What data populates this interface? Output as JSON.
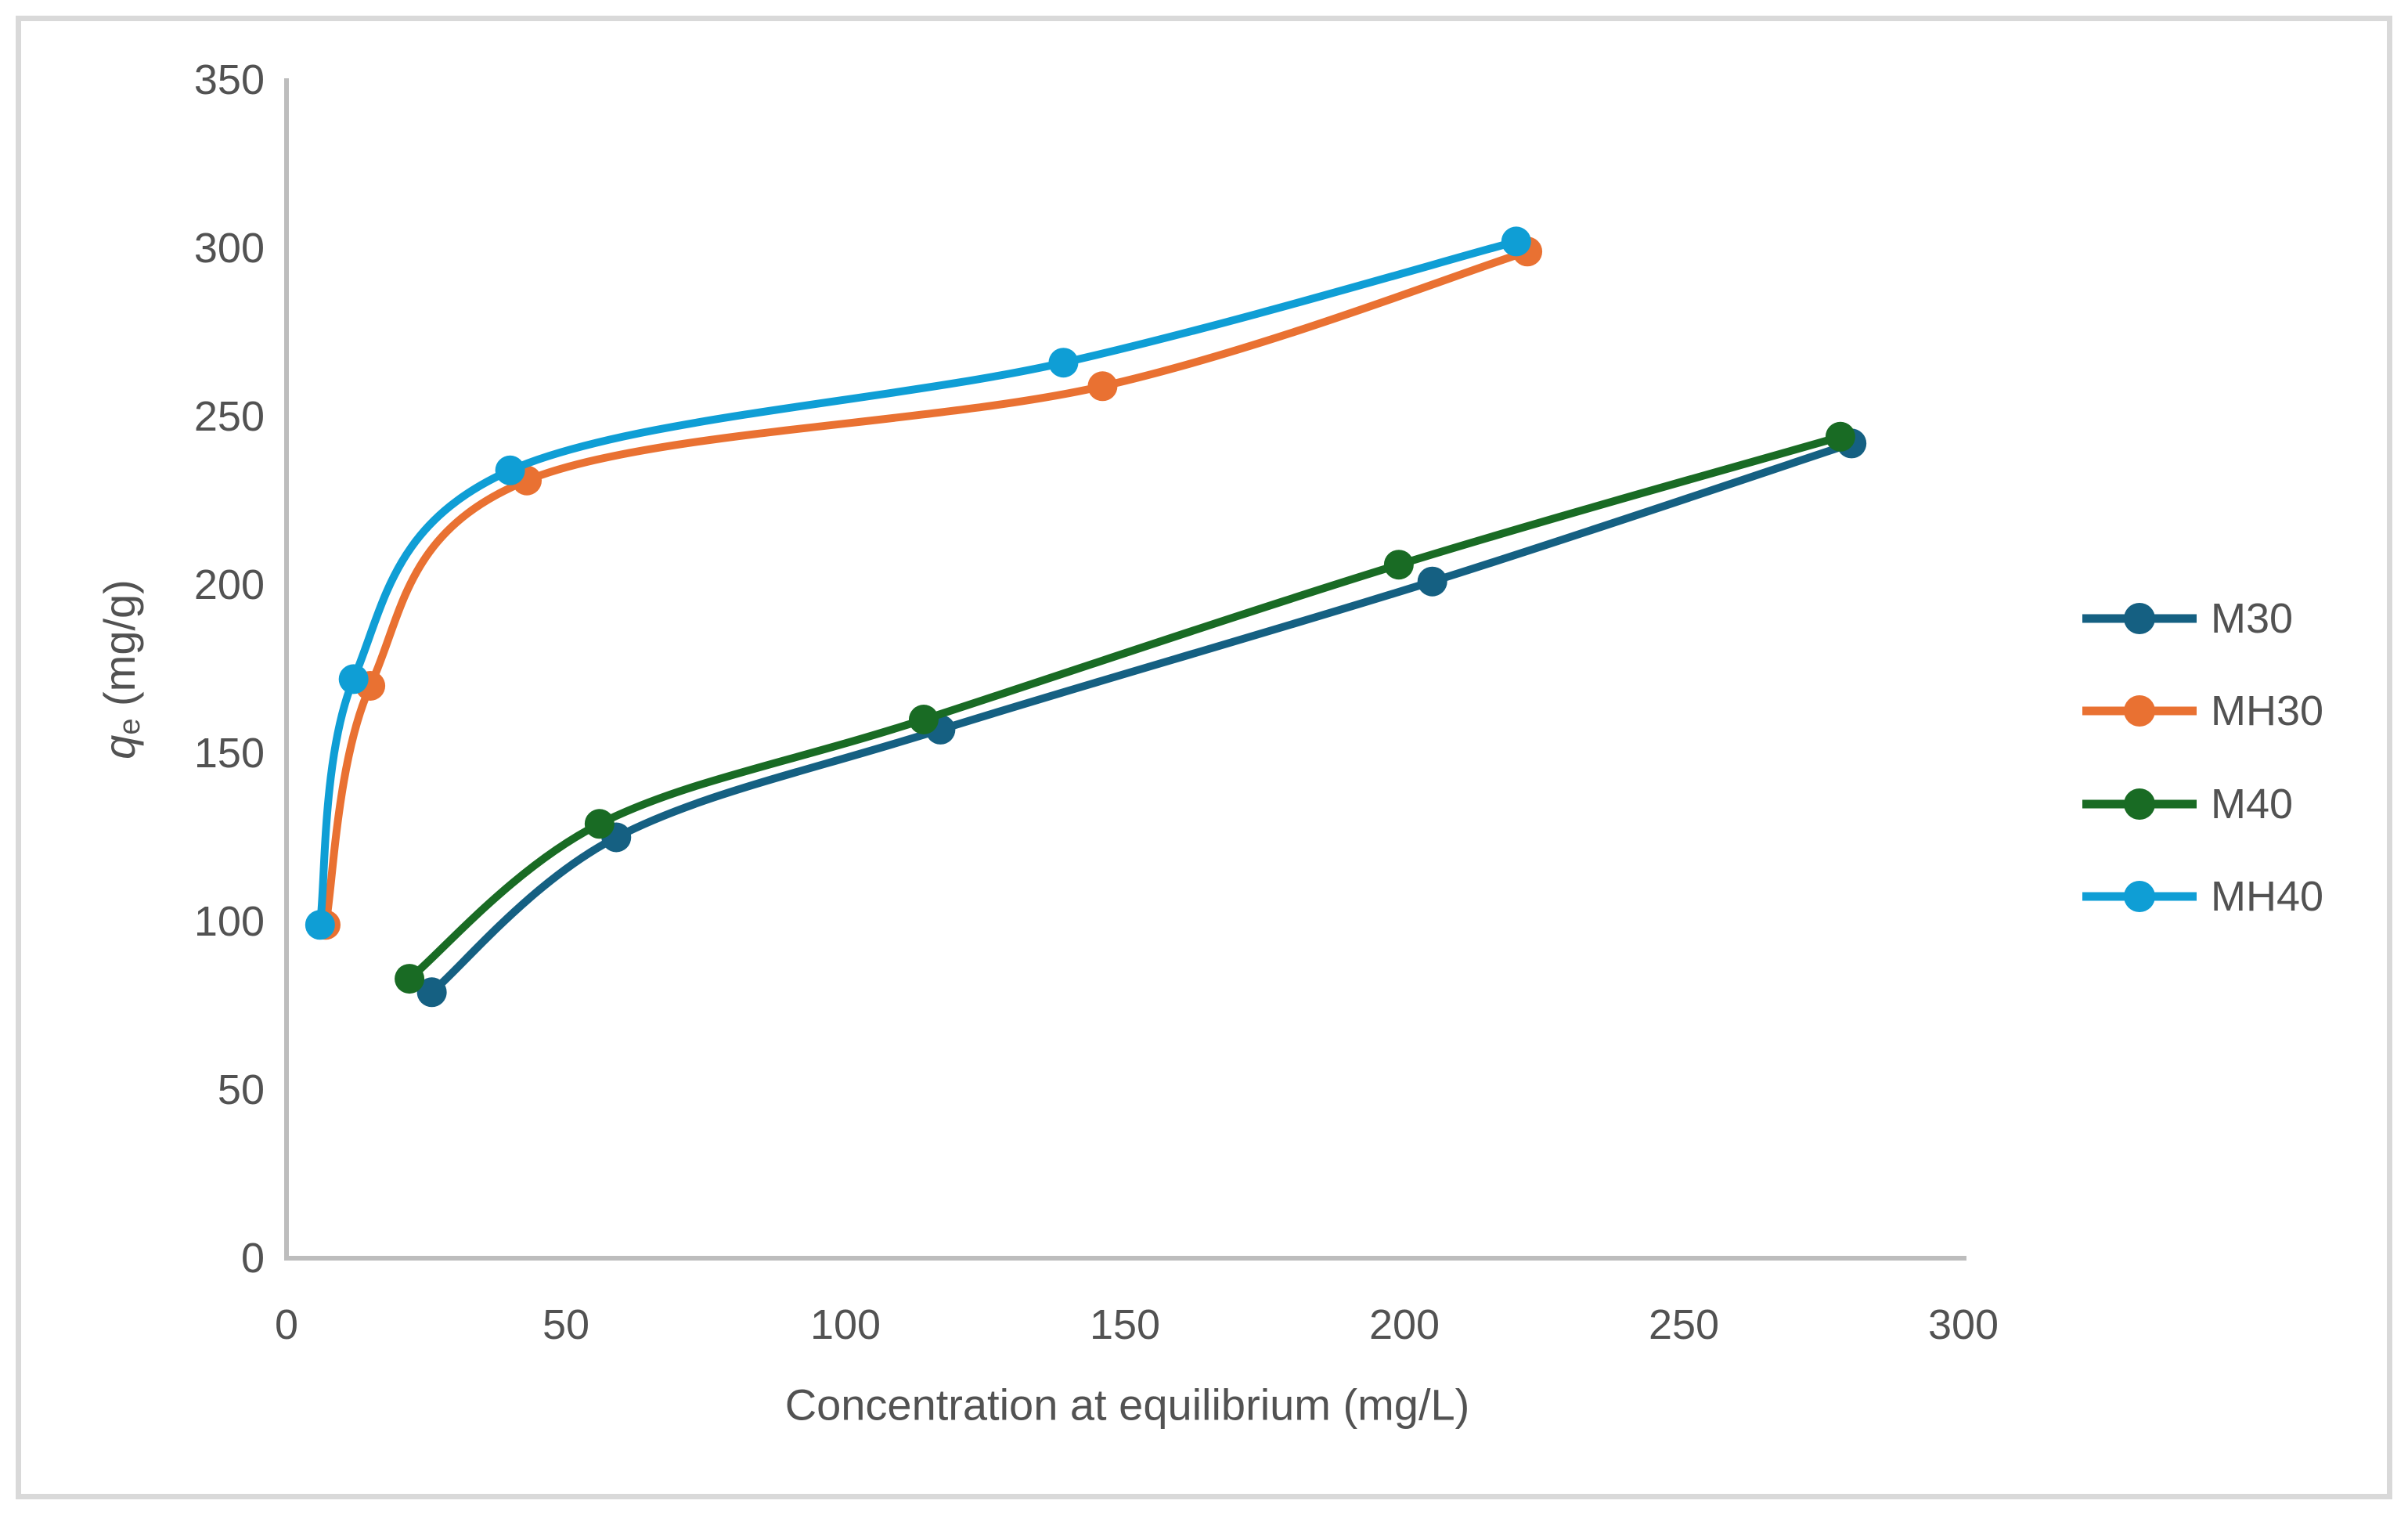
{
  "figure": {
    "background": "#FFFFFF",
    "border_color": "#D9D9D9"
  },
  "chart_data": {
    "type": "line",
    "title": "",
    "xlabel": "Concentration at equilibrium (mg/L)",
    "ylabel": "qe (mg/g)",
    "ylabel_parts": {
      "variable": "q",
      "subscript": "e",
      "units": " (mg/g)"
    },
    "xlim": [
      0,
      301
    ],
    "ylim": [
      0,
      350
    ],
    "x_ticks": [
      0,
      50,
      100,
      150,
      200,
      250,
      300
    ],
    "y_ticks": [
      0,
      50,
      100,
      150,
      200,
      250,
      300,
      350
    ],
    "grid": false,
    "smooth": true,
    "marker": "circle",
    "legend_position": "right",
    "axis_color": "#BDBDBD",
    "text_color": "#525252",
    "series": [
      {
        "name": "M30",
        "color": "#156082",
        "points": [
          [
            26,
            79
          ],
          [
            59,
            125
          ],
          [
            117,
            157
          ],
          [
            205,
            201
          ],
          [
            280,
            242
          ]
        ]
      },
      {
        "name": "MH30",
        "color": "#E97132",
        "points": [
          [
            7,
            99
          ],
          [
            15,
            170
          ],
          [
            43,
            231
          ],
          [
            146,
            259
          ],
          [
            222,
            299
          ]
        ]
      },
      {
        "name": "M40",
        "color": "#196B24",
        "points": [
          [
            22,
            83
          ],
          [
            56,
            129
          ],
          [
            114,
            160
          ],
          [
            199,
            206
          ],
          [
            278,
            244
          ]
        ]
      },
      {
        "name": "MH40",
        "color": "#0F9ED5",
        "points": [
          [
            6,
            99
          ],
          [
            12,
            172
          ],
          [
            40,
            234
          ],
          [
            139,
            266
          ],
          [
            220,
            302
          ]
        ]
      }
    ]
  }
}
